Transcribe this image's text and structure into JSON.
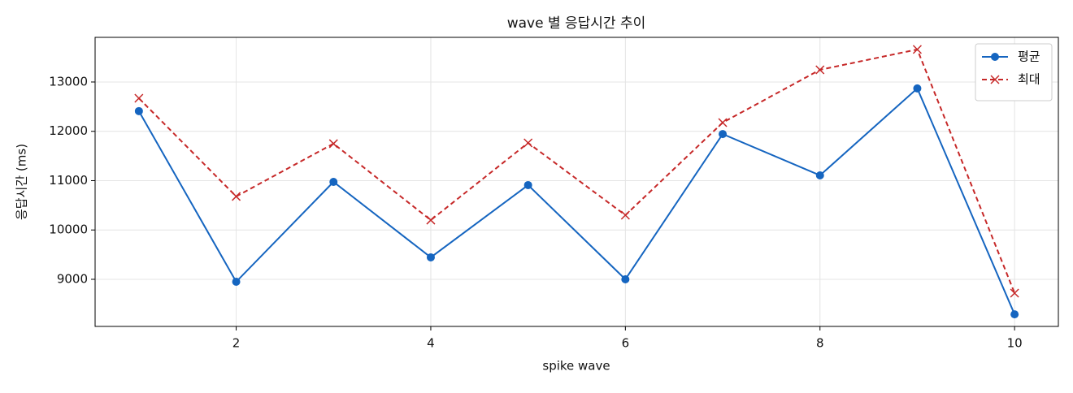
{
  "chart_data": {
    "type": "line",
    "title": "wave 별 응답시간 추이",
    "x_label": "spike wave",
    "y_label": "응답시간 (ms)",
    "x": [
      1,
      2,
      3,
      4,
      5,
      6,
      7,
      8,
      9,
      10
    ],
    "series": [
      {
        "name": "평균",
        "color": "#1565c0",
        "marker": "o",
        "linestyle": "solid",
        "values": [
          12410,
          8950,
          10975,
          9445,
          10910,
          9000,
          11945,
          11107,
          12870,
          8290
        ]
      },
      {
        "name": "최대",
        "color": "#c62828",
        "marker": "x",
        "linestyle": "dashed",
        "values": [
          12670,
          10680,
          11750,
          10200,
          11765,
          10300,
          12177,
          13247,
          13660,
          8720
        ]
      }
    ],
    "xlim": [
      0.55,
      10.45
    ],
    "ylim": [
      8045,
      13905
    ],
    "xticks": [
      2,
      4,
      6,
      8,
      10
    ],
    "yticks": [
      9000,
      10000,
      11000,
      12000,
      13000
    ],
    "grid": true,
    "legend": "upper right"
  }
}
